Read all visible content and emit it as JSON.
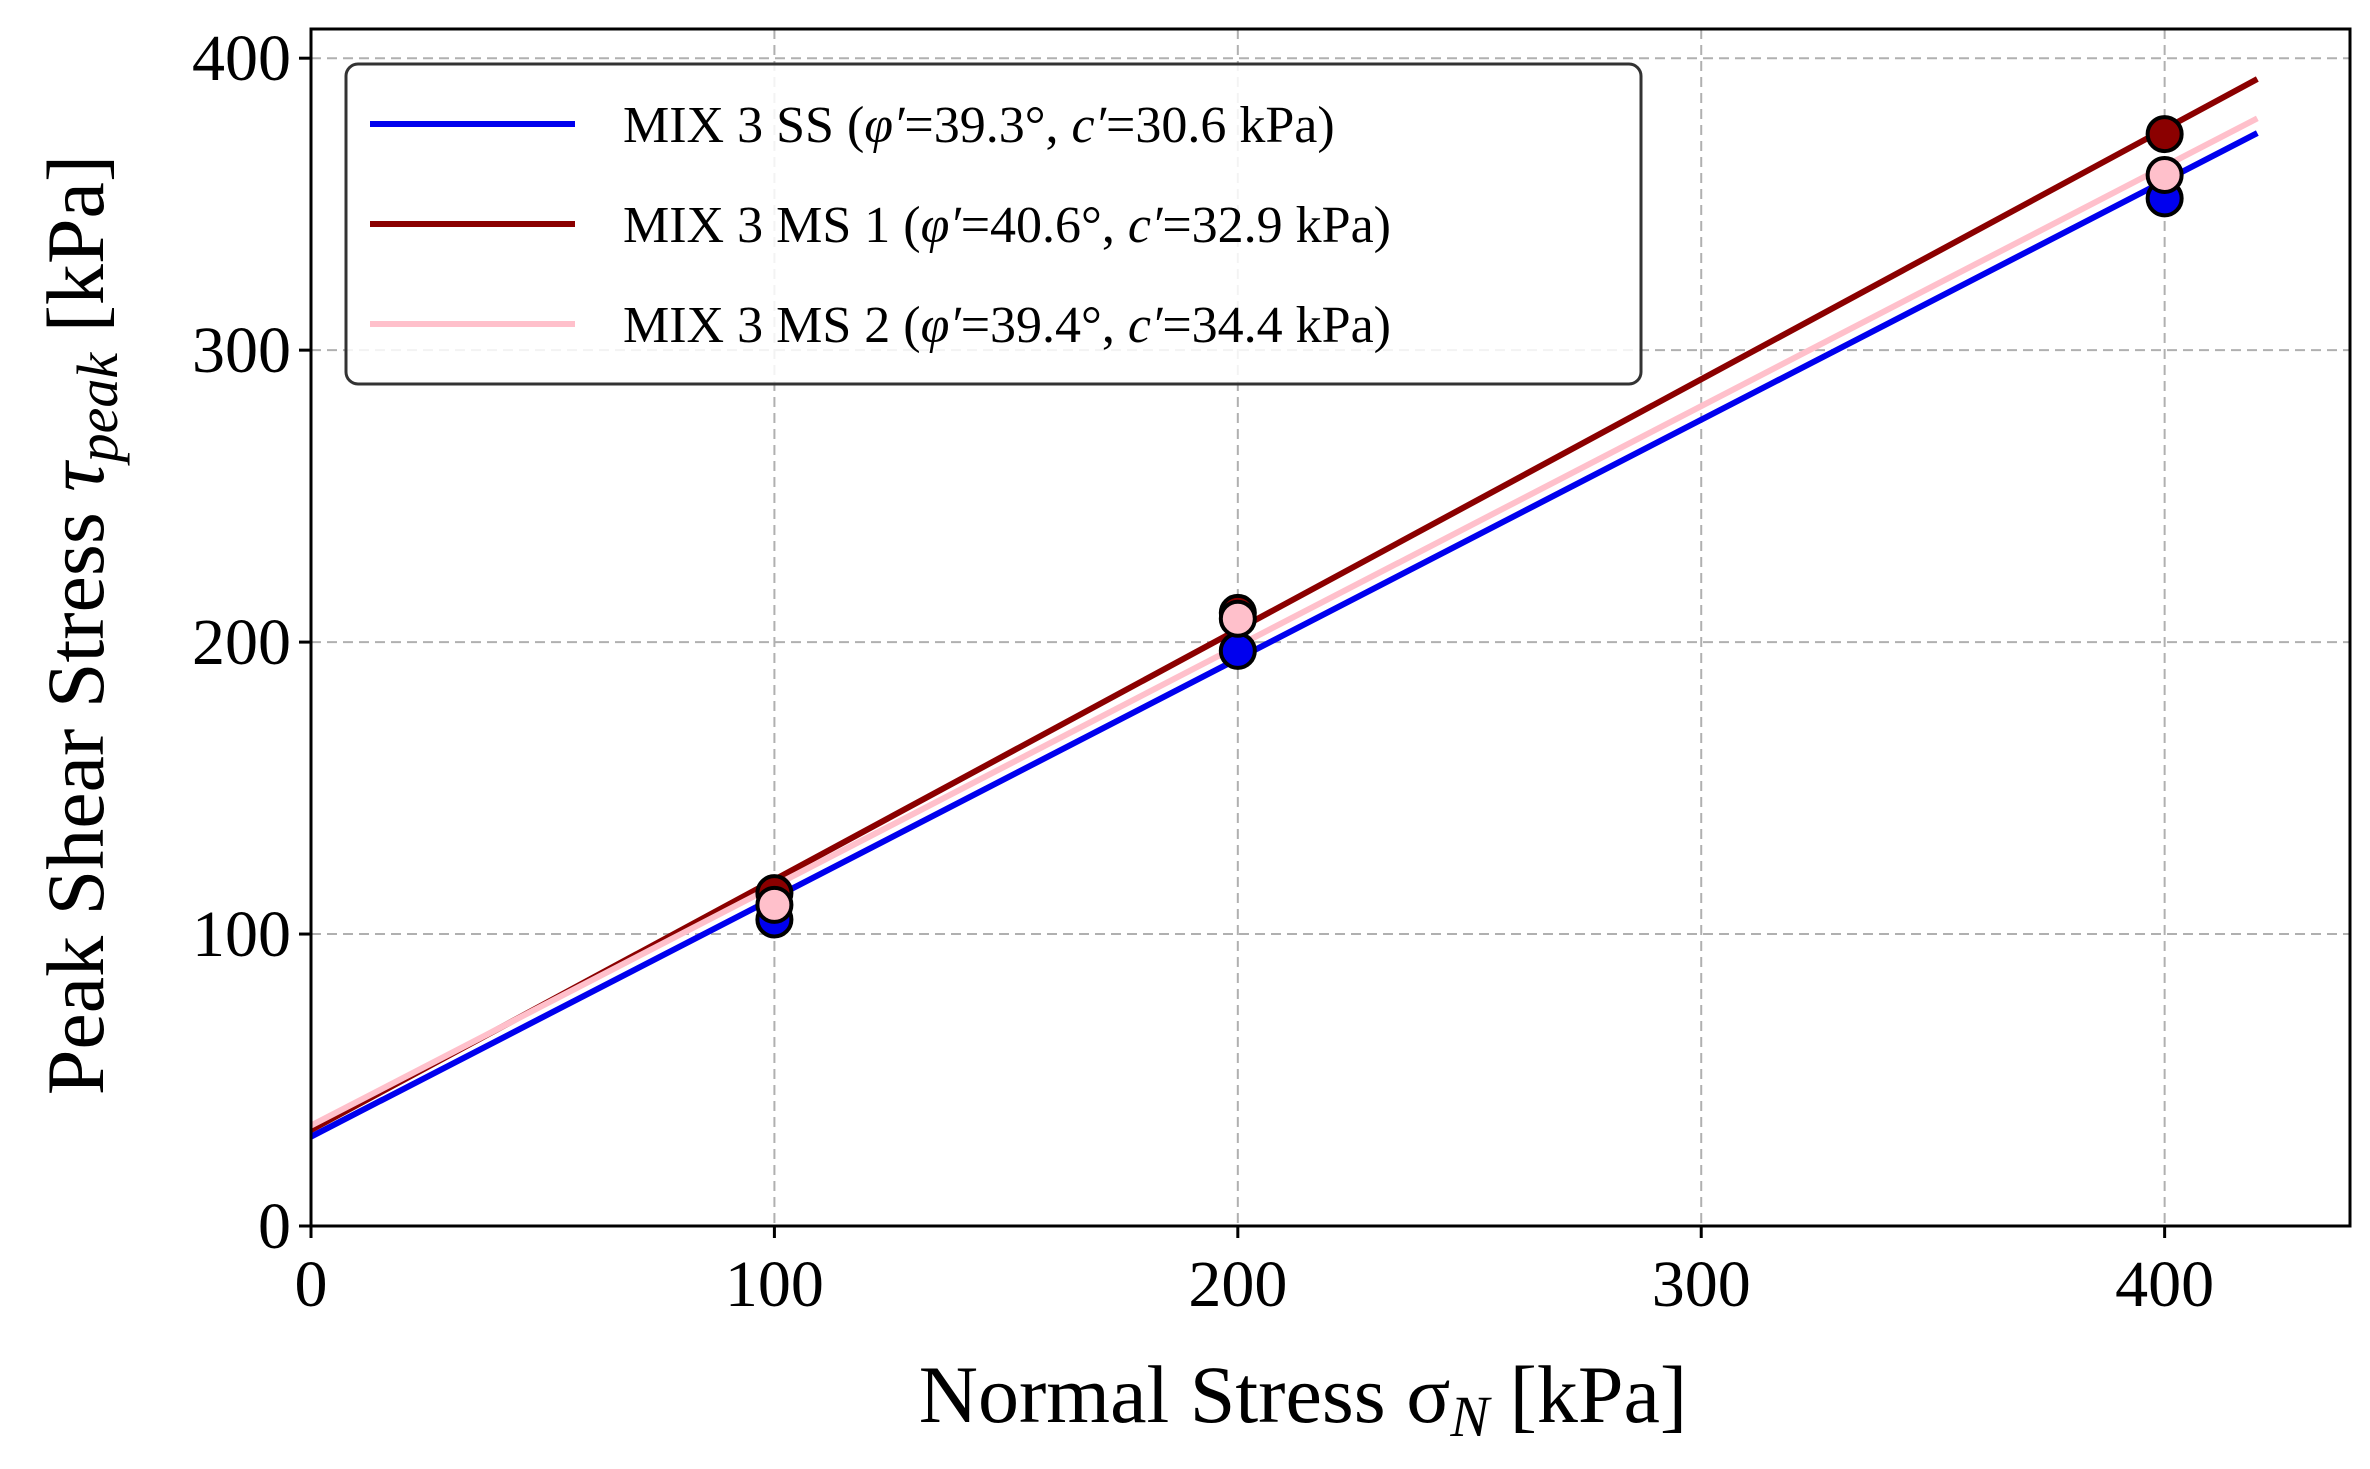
{
  "chart_data": {
    "type": "scatter",
    "xlabel_main": "Normal Stress ",
    "xlabel_symbol": "σ",
    "xlabel_sub": "N",
    "xlabel_unit": " [kPa]",
    "ylabel_main": "Peak Shear Stress ",
    "ylabel_symbol": "τ",
    "ylabel_sub": "peak",
    "ylabel_unit": " [kPa]",
    "xlim": [
      0,
      440
    ],
    "ylim": [
      0,
      410
    ],
    "xticks": [
      0,
      100,
      200,
      300,
      400
    ],
    "yticks": [
      0,
      100,
      200,
      300,
      400
    ],
    "grid": true,
    "legend_position": "top-left",
    "series": [
      {
        "name": "MIX 3 SS (φ′=39.3°, c′=30.6 kPa)",
        "name_parts": {
          "prefix": "MIX 3 SS (",
          "phi": "φ′",
          "phi_val": "=39.3°, ",
          "c": "c′",
          "c_val": "=30.6 kPa)"
        },
        "color": "#0000ee",
        "phi_deg": 39.3,
        "c_kpa": 30.6,
        "fit_x": [
          0,
          420
        ],
        "points": [
          {
            "x": 100,
            "y": 105
          },
          {
            "x": 200,
            "y": 197
          },
          {
            "x": 400,
            "y": 352
          }
        ]
      },
      {
        "name": "MIX 3 MS 1 (φ′=40.6°, c′=32.9 kPa)",
        "name_parts": {
          "prefix": "MIX 3 MS 1 (",
          "phi": "φ′",
          "phi_val": "=40.6°, ",
          "c": "c′",
          "c_val": "=32.9 kPa)"
        },
        "color": "#8b0000",
        "phi_deg": 40.6,
        "c_kpa": 32.9,
        "fit_x": [
          0,
          420
        ],
        "points": [
          {
            "x": 100,
            "y": 114
          },
          {
            "x": 200,
            "y": 210
          },
          {
            "x": 400,
            "y": 374
          }
        ]
      },
      {
        "name": "MIX 3 MS 2 (φ′=39.4°, c′=34.4 kPa)",
        "name_parts": {
          "prefix": "MIX 3 MS 2 (",
          "phi": "φ′",
          "phi_val": "=39.4°, ",
          "c": "c′",
          "c_val": "=34.4 kPa)"
        },
        "color": "#ffc0cb",
        "phi_deg": 39.4,
        "c_kpa": 34.4,
        "fit_x": [
          0,
          420
        ],
        "points": [
          {
            "x": 100,
            "y": 110
          },
          {
            "x": 200,
            "y": 208
          },
          {
            "x": 400,
            "y": 360
          }
        ]
      }
    ]
  }
}
